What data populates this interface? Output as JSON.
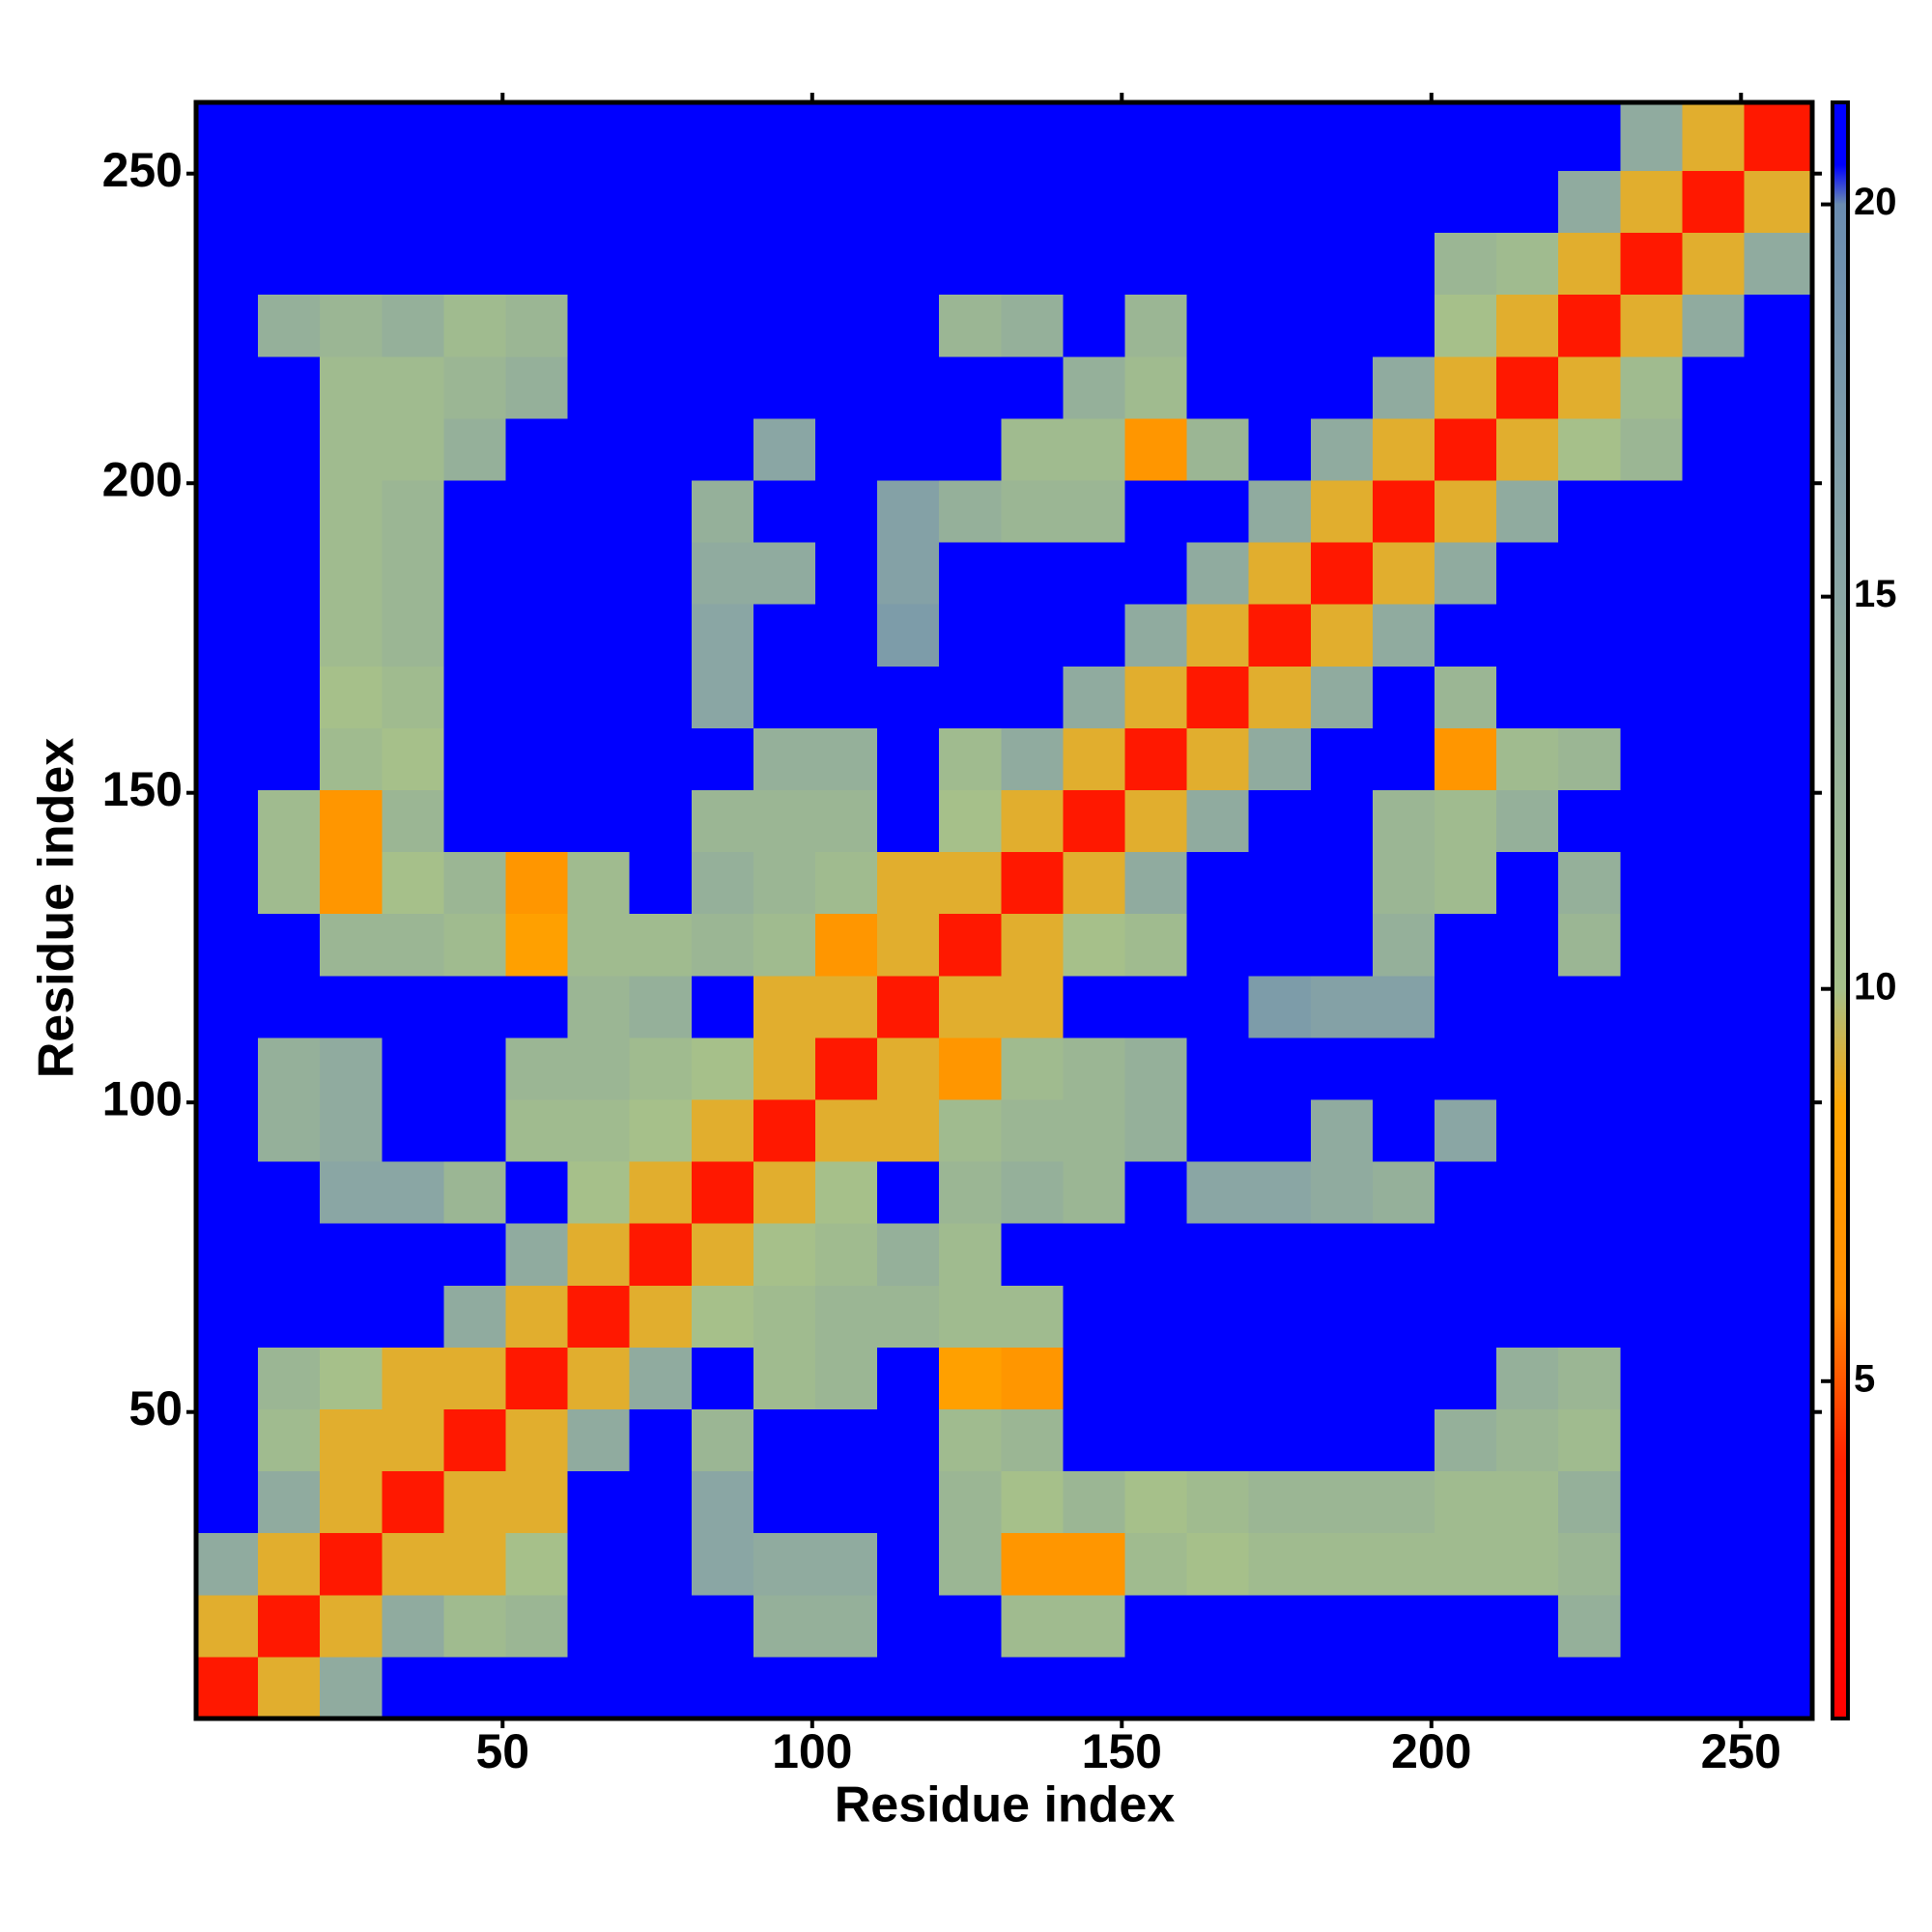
{
  "chart_data": {
    "type": "heatmap",
    "xlabel": "Residue index",
    "ylabel": "Residue index",
    "xlim": [
      0.5,
      261.5
    ],
    "ylim": [
      0.5,
      261.5
    ],
    "xticks": [
      50,
      100,
      150,
      200,
      250
    ],
    "yticks": [
      50,
      100,
      150,
      200,
      250
    ],
    "bins": [
      0.5,
      10.5,
      20.5,
      30.5,
      40.5,
      50.5,
      60.5,
      70.5,
      80.5,
      90.5,
      100.5,
      110.5,
      120.5,
      130.5,
      140.5,
      150.5,
      160.5,
      170.5,
      180.5,
      190.5,
      200.5,
      210.5,
      220.5,
      230.5,
      240.5,
      250.5,
      261.5
    ],
    "zlim": [
      0.7,
      21.3
    ],
    "zticks": [
      5,
      10,
      15,
      20
    ],
    "colormap": [
      [
        0.7,
        "#ff0000"
      ],
      [
        4,
        "#ff2200"
      ],
      [
        6,
        "#ff8c00"
      ],
      [
        8.5,
        "#ffa500"
      ],
      [
        10,
        "#a6c08a"
      ],
      [
        15,
        "#8aa6a4"
      ],
      [
        20,
        "#6a8cb0"
      ],
      [
        20.5,
        "#0000ff"
      ],
      [
        21.3,
        "#0000ff"
      ]
    ],
    "values": [
      [
        3,
        9,
        14,
        21,
        21,
        21,
        21,
        21,
        21,
        21,
        21,
        21,
        21,
        21,
        21,
        21,
        21,
        21,
        21,
        21,
        21,
        21,
        21,
        21,
        21,
        21
      ],
      [
        9,
        3,
        9,
        14,
        11,
        12,
        21,
        21,
        21,
        13,
        13,
        21,
        21,
        11,
        11,
        21,
        21,
        21,
        21,
        21,
        21,
        21,
        13,
        21,
        21,
        21
      ],
      [
        14,
        9,
        3,
        9,
        9,
        10,
        21,
        21,
        15,
        14,
        14,
        21,
        12,
        7,
        7,
        11,
        10,
        11,
        11,
        11,
        11,
        11,
        12,
        21,
        21,
        21
      ],
      [
        21,
        14,
        9,
        3,
        9,
        9,
        21,
        21,
        15,
        21,
        21,
        21,
        12,
        10,
        12,
        10,
        11,
        12,
        12,
        12,
        11,
        11,
        13,
        21,
        21,
        21
      ],
      [
        21,
        11,
        9,
        9,
        3,
        9,
        14,
        21,
        12,
        21,
        21,
        21,
        11,
        12,
        21,
        21,
        21,
        21,
        21,
        21,
        13,
        12,
        11,
        21,
        21,
        21
      ],
      [
        21,
        12,
        10,
        9,
        9,
        3,
        9,
        14,
        21,
        11,
        12,
        21,
        8,
        7,
        21,
        21,
        21,
        21,
        21,
        21,
        21,
        13,
        12,
        21,
        21,
        21
      ],
      [
        21,
        21,
        21,
        21,
        14,
        9,
        3,
        9,
        10,
        11,
        12,
        12,
        11,
        11,
        21,
        21,
        21,
        21,
        21,
        21,
        21,
        21,
        21,
        21,
        21,
        21
      ],
      [
        21,
        21,
        21,
        21,
        21,
        14,
        9,
        3,
        9,
        10,
        11,
        13,
        11,
        21,
        21,
        21,
        21,
        21,
        21,
        21,
        21,
        21,
        21,
        21,
        21,
        21
      ],
      [
        21,
        21,
        15,
        15,
        12,
        21,
        10,
        9,
        3,
        9,
        10,
        21,
        12,
        13,
        12,
        21,
        15,
        15,
        14,
        13,
        21,
        21,
        21,
        21,
        21,
        21
      ],
      [
        21,
        13,
        14,
        21,
        21,
        11,
        11,
        10,
        9,
        3,
        9,
        9,
        11,
        12,
        12,
        13,
        21,
        21,
        14,
        21,
        15,
        21,
        21,
        21,
        21,
        21
      ],
      [
        21,
        13,
        14,
        21,
        21,
        12,
        12,
        11,
        10,
        9,
        3,
        9,
        7,
        11,
        12,
        13,
        21,
        21,
        21,
        21,
        21,
        21,
        21,
        21,
        21,
        21
      ],
      [
        21,
        21,
        21,
        21,
        21,
        21,
        12,
        13,
        21,
        9,
        9,
        3,
        9,
        9,
        21,
        21,
        21,
        17,
        16,
        16,
        21,
        21,
        21,
        21,
        21,
        21
      ],
      [
        21,
        21,
        12,
        12,
        11,
        8,
        11,
        11,
        12,
        11,
        7,
        9,
        3,
        9,
        10,
        11,
        21,
        21,
        21,
        13,
        21,
        21,
        12,
        21,
        21,
        21
      ],
      [
        21,
        11,
        7,
        10,
        12,
        7,
        11,
        21,
        13,
        12,
        11,
        9,
        9,
        3,
        9,
        14,
        21,
        21,
        21,
        12,
        11,
        21,
        13,
        21,
        21,
        21
      ],
      [
        21,
        11,
        7,
        12,
        21,
        21,
        21,
        21,
        12,
        12,
        12,
        21,
        10,
        9,
        3,
        9,
        14,
        21,
        21,
        12,
        11,
        13,
        21,
        21,
        21,
        21
      ],
      [
        21,
        21,
        11,
        10,
        21,
        21,
        21,
        21,
        21,
        13,
        13,
        21,
        11,
        14,
        9,
        3,
        9,
        14,
        21,
        21,
        7,
        11,
        12,
        21,
        21,
        21
      ],
      [
        21,
        21,
        10,
        11,
        21,
        21,
        21,
        21,
        15,
        21,
        21,
        21,
        21,
        21,
        14,
        9,
        3,
        9,
        14,
        21,
        12,
        21,
        21,
        21,
        21,
        21
      ],
      [
        21,
        21,
        11,
        12,
        21,
        21,
        21,
        21,
        15,
        21,
        21,
        17,
        21,
        21,
        21,
        14,
        9,
        3,
        9,
        14,
        21,
        21,
        21,
        21,
        21,
        21
      ],
      [
        21,
        21,
        11,
        12,
        21,
        21,
        21,
        21,
        14,
        14,
        21,
        16,
        21,
        21,
        21,
        21,
        14,
        9,
        3,
        9,
        14,
        21,
        21,
        21,
        21,
        21
      ],
      [
        21,
        21,
        11,
        12,
        21,
        21,
        21,
        21,
        13,
        21,
        21,
        16,
        13,
        12,
        12,
        21,
        21,
        14,
        9,
        3,
        9,
        14,
        21,
        21,
        21,
        21
      ],
      [
        21,
        21,
        11,
        11,
        13,
        21,
        21,
        21,
        21,
        15,
        21,
        21,
        21,
        11,
        11,
        7,
        12,
        21,
        14,
        9,
        3,
        9,
        10,
        12,
        21,
        21
      ],
      [
        21,
        21,
        11,
        11,
        12,
        13,
        21,
        21,
        21,
        21,
        21,
        21,
        21,
        21,
        13,
        11,
        21,
        21,
        21,
        14,
        9,
        3,
        9,
        11,
        21,
        21
      ],
      [
        21,
        13,
        12,
        13,
        11,
        12,
        21,
        21,
        21,
        21,
        21,
        21,
        12,
        13,
        21,
        12,
        21,
        21,
        21,
        21,
        10,
        9,
        3,
        9,
        14,
        21
      ],
      [
        21,
        21,
        21,
        21,
        21,
        21,
        21,
        21,
        21,
        21,
        21,
        21,
        21,
        21,
        21,
        21,
        21,
        21,
        21,
        21,
        12,
        11,
        9,
        3,
        9,
        14
      ],
      [
        21,
        21,
        21,
        21,
        21,
        21,
        21,
        21,
        21,
        21,
        21,
        21,
        21,
        21,
        21,
        21,
        21,
        21,
        21,
        21,
        21,
        21,
        14,
        9,
        3,
        9
      ],
      [
        21,
        21,
        21,
        21,
        21,
        21,
        21,
        21,
        21,
        21,
        21,
        21,
        21,
        21,
        21,
        21,
        21,
        21,
        21,
        21,
        21,
        21,
        21,
        14,
        9,
        3
      ]
    ]
  }
}
